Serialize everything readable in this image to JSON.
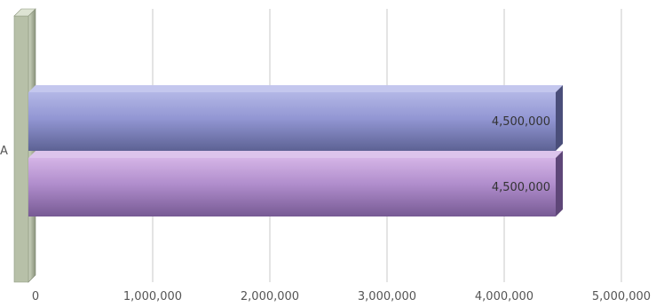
{
  "chart_data": {
    "type": "bar",
    "orientation": "horizontal",
    "three_d": true,
    "categories": [
      "A"
    ],
    "series": [
      {
        "values": [
          4500000
        ],
        "color": "#8b8fcc"
      },
      {
        "values": [
          4500000
        ],
        "color": "#a88bc6"
      }
    ],
    "data_labels": [
      "4,500,000",
      "4,500,000"
    ],
    "xlim": [
      0,
      5000000
    ],
    "x_ticks": [
      0,
      1000000,
      2000000,
      3000000,
      4000000,
      5000000
    ],
    "x_tick_labels": [
      "0",
      "1,000,000",
      "2,000,000",
      "3,000,000",
      "4,000,000",
      "5,000,000"
    ],
    "grid": true,
    "legend": "none",
    "colors": {
      "grid": "#c8c8c8",
      "axis_wall": "#a9b39a",
      "tick_text": "#555555",
      "label_text": "#333333"
    }
  }
}
